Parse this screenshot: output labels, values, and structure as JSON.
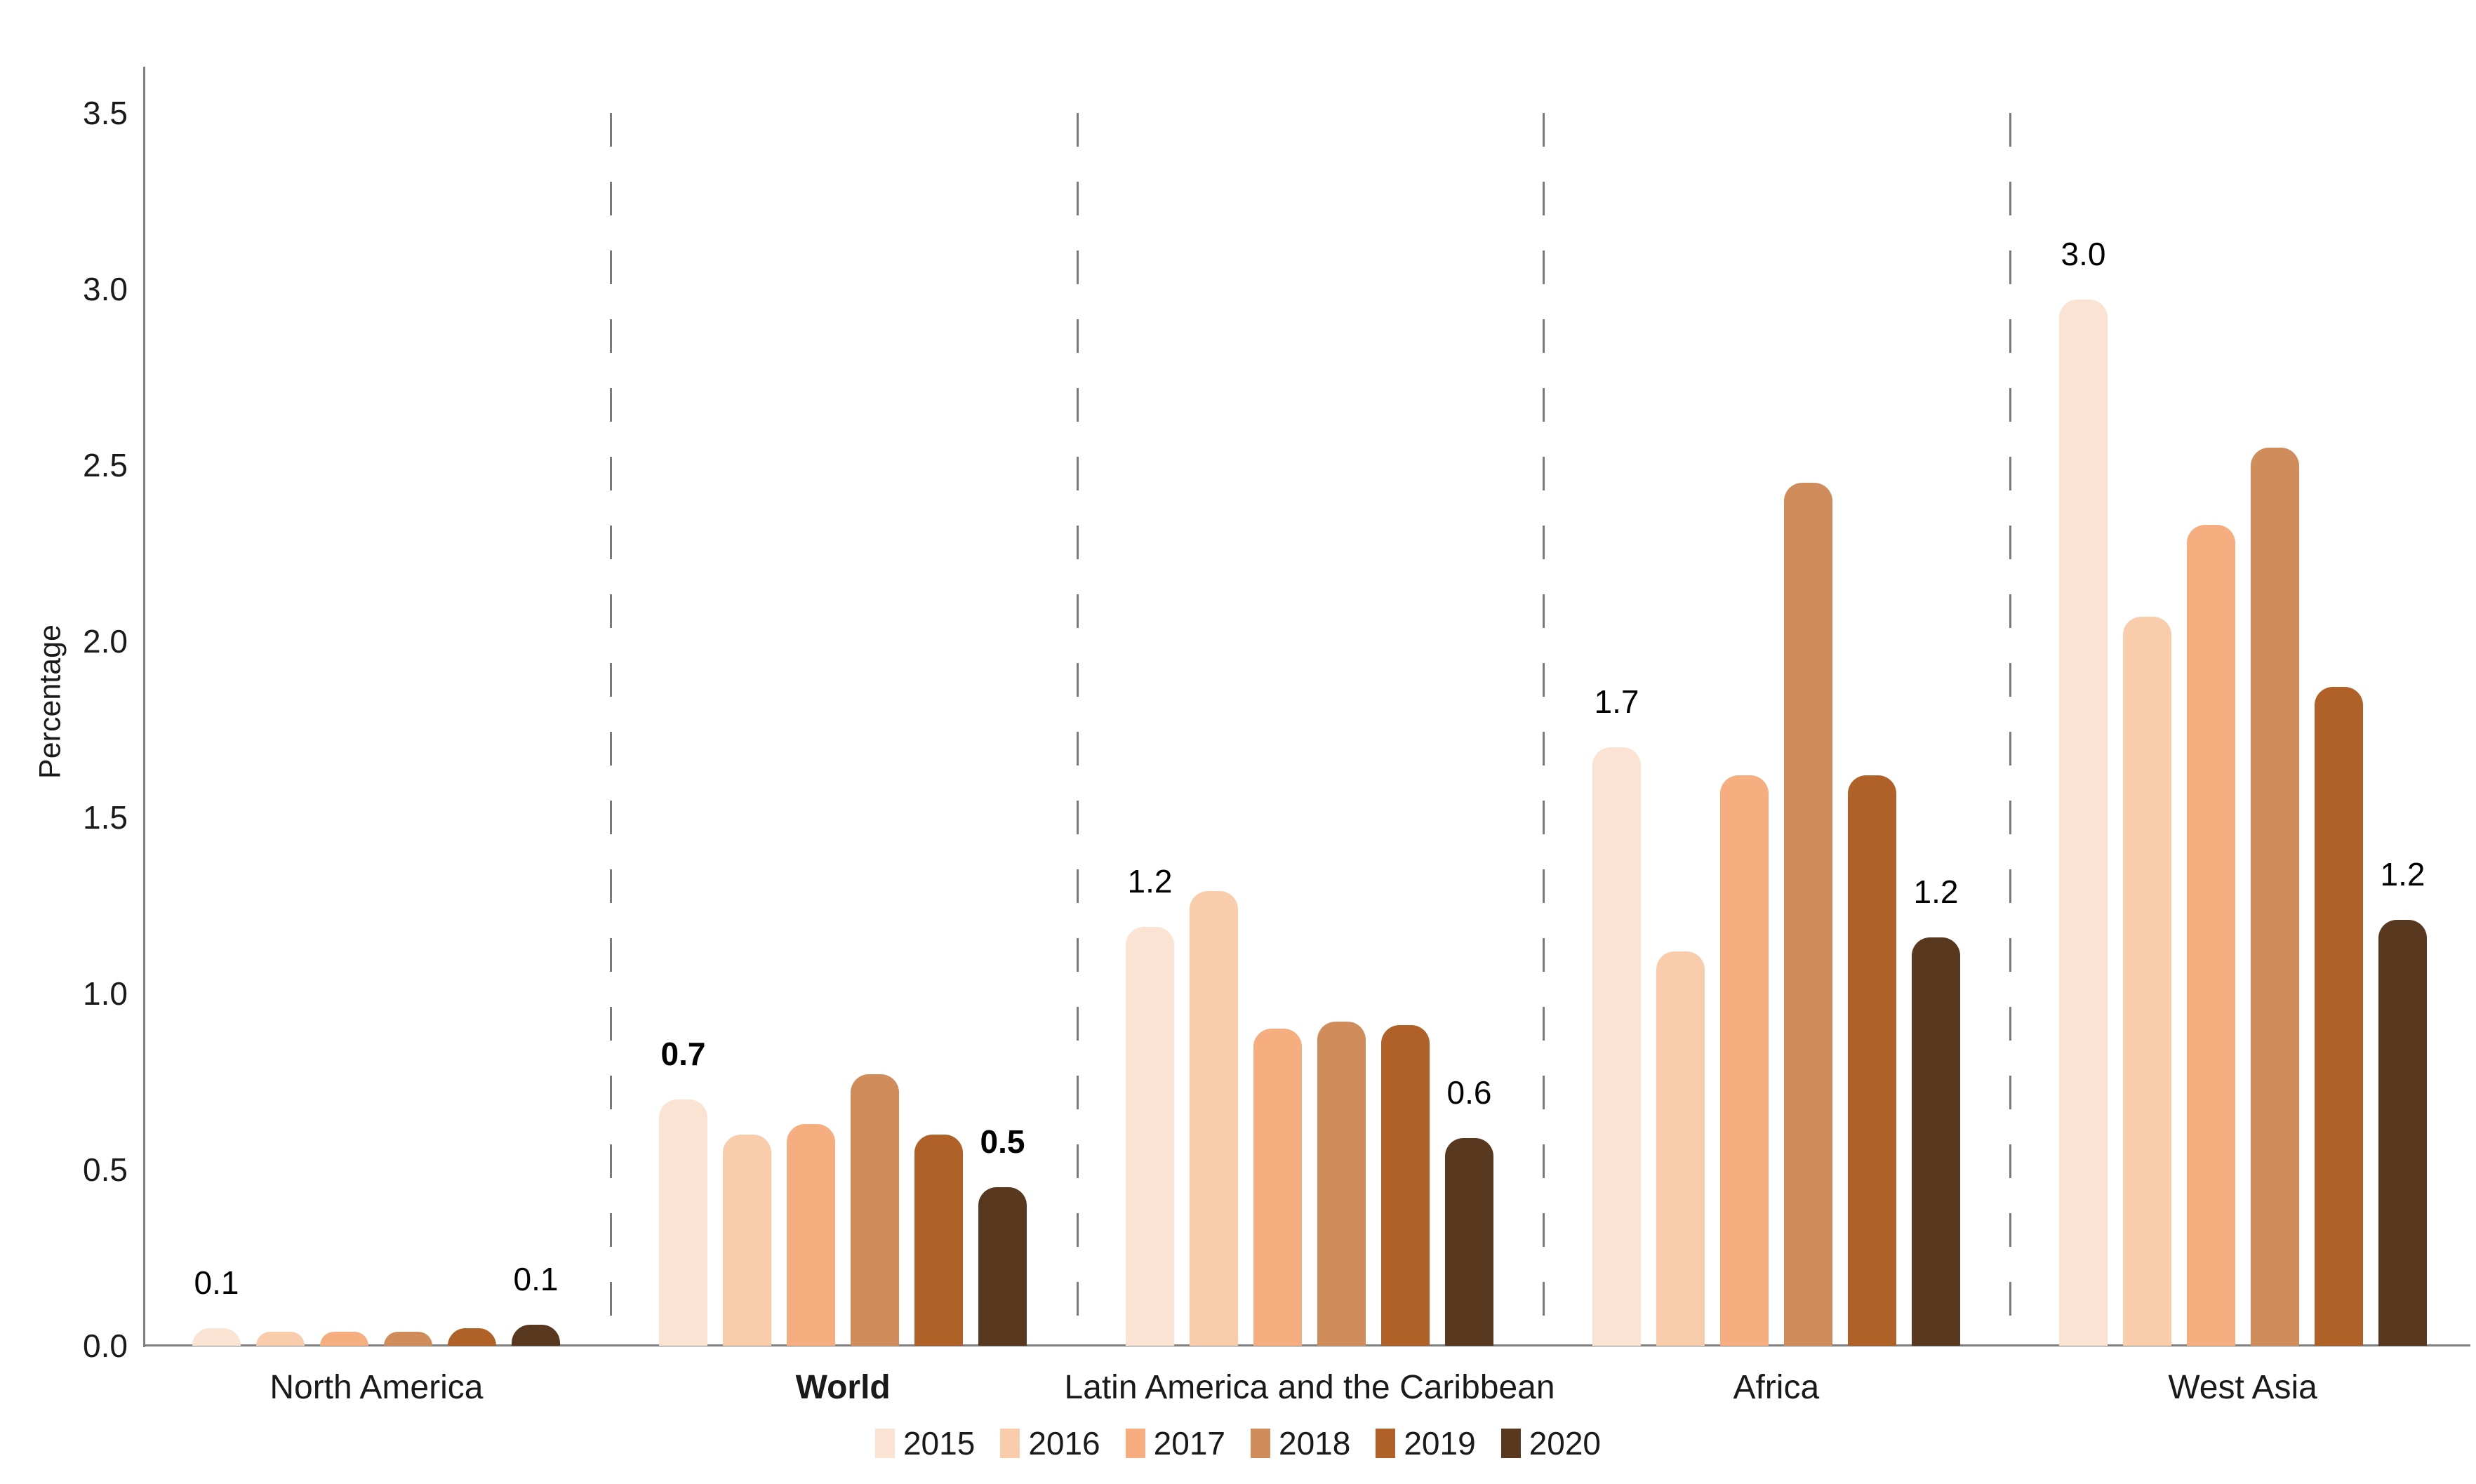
{
  "chart_data": {
    "type": "bar",
    "title": "",
    "ylabel": "Percentage",
    "xlabel": "",
    "ylim": [
      0,
      3.5
    ],
    "grid": "off",
    "legend_position": "bottom-center",
    "group_separators": "dashed-vertical-gray",
    "yticks": [
      {
        "value": 3.5,
        "label": "3.5"
      },
      {
        "value": 3.0,
        "label": "3.0"
      },
      {
        "value": 2.5,
        "label": "2.5"
      },
      {
        "value": 2.0,
        "label": "2.0"
      },
      {
        "value": 1.5,
        "label": "1.5"
      },
      {
        "value": 1.0,
        "label": "1.0"
      },
      {
        "value": 0.5,
        "label": "0.5"
      },
      {
        "value": 0.0,
        "label": "0.0"
      }
    ],
    "categories": [
      "North America",
      "World",
      "Latin America and the Caribbean",
      "Africa",
      "West Asia"
    ],
    "bold_category_index": 1,
    "series": [
      {
        "name": "2015",
        "color": "#fbe3d3",
        "values": [
          0.05,
          0.7,
          1.19,
          1.7,
          2.97
        ]
      },
      {
        "name": "2016",
        "color": "#f9ccac",
        "values": [
          0.04,
          0.6,
          1.29,
          1.12,
          2.07
        ]
      },
      {
        "name": "2017",
        "color": "#f6ae80",
        "values": [
          0.04,
          0.63,
          0.9,
          1.62,
          2.33
        ]
      },
      {
        "name": "2018",
        "color": "#d18c5b",
        "values": [
          0.04,
          0.77,
          0.92,
          2.45,
          2.55
        ]
      },
      {
        "name": "2019",
        "color": "#b06127",
        "values": [
          0.05,
          0.6,
          0.91,
          1.62,
          1.87
        ]
      },
      {
        "name": "2020",
        "color": "#58381f",
        "values": [
          0.06,
          0.45,
          0.59,
          1.16,
          1.21
        ]
      }
    ],
    "bar_labels": [
      {
        "category_index": 0,
        "series_index": 0,
        "text": "0.1",
        "bold": false
      },
      {
        "category_index": 0,
        "series_index": 5,
        "text": "0.1",
        "bold": false
      },
      {
        "category_index": 1,
        "series_index": 0,
        "text": "0.7",
        "bold": true
      },
      {
        "category_index": 1,
        "series_index": 5,
        "text": "0.5",
        "bold": true
      },
      {
        "category_index": 2,
        "series_index": 0,
        "text": "1.2",
        "bold": false
      },
      {
        "category_index": 2,
        "series_index": 5,
        "text": "0.6",
        "bold": false
      },
      {
        "category_index": 3,
        "series_index": 0,
        "text": "1.7",
        "bold": false
      },
      {
        "category_index": 3,
        "series_index": 5,
        "text": "1.2",
        "bold": false
      },
      {
        "category_index": 4,
        "series_index": 0,
        "text": "3.0",
        "bold": false
      },
      {
        "category_index": 4,
        "series_index": 5,
        "text": "1.2",
        "bold": false
      }
    ],
    "colors": {
      "axis": "#7f7f7f",
      "separator": "#7a7a7a",
      "text": "#1a1a1a"
    }
  }
}
